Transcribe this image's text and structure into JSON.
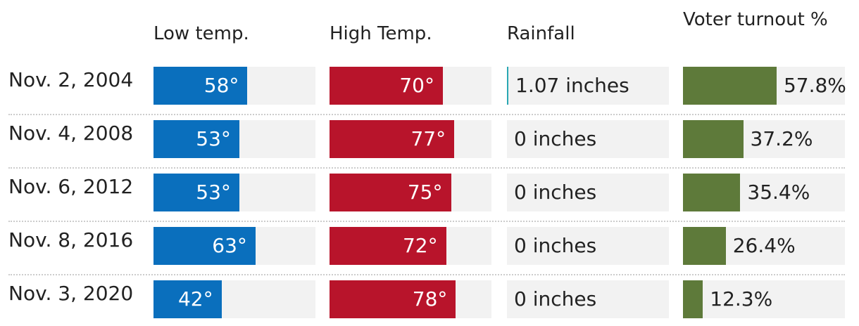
{
  "chart_data": {
    "type": "table",
    "columns": [
      "Low temp.",
      "High Temp.",
      "Rainfall",
      "Voter turnout %"
    ],
    "rows": [
      {
        "date": "Nov. 2, 2004",
        "low": 58,
        "low_label": "58°",
        "high": 70,
        "high_label": "70°",
        "rain": 1.07,
        "rain_label": "1.07 inches",
        "turnout": 57.8,
        "turnout_label": "57.8%"
      },
      {
        "date": "Nov. 4, 2008",
        "low": 53,
        "low_label": "53°",
        "high": 77,
        "high_label": "77°",
        "rain": 0,
        "rain_label": "0 inches",
        "turnout": 37.2,
        "turnout_label": "37.2%"
      },
      {
        "date": "Nov. 6, 2012",
        "low": 53,
        "low_label": "53°",
        "high": 75,
        "high_label": "75°",
        "rain": 0,
        "rain_label": "0 inches",
        "turnout": 35.4,
        "turnout_label": "35.4%"
      },
      {
        "date": "Nov. 8, 2016",
        "low": 63,
        "low_label": "63°",
        "high": 72,
        "high_label": "72°",
        "rain": 0,
        "rain_label": "0 inches",
        "turnout": 26.4,
        "turnout_label": "26.4%"
      },
      {
        "date": "Nov. 3, 2020",
        "low": 42,
        "low_label": "42°",
        "high": 78,
        "high_label": "78°",
        "rain": 0,
        "rain_label": "0 inches",
        "turnout": 12.3,
        "turnout_label": "12.3%"
      }
    ],
    "colors": {
      "low": "#0a6fbd",
      "high": "#b8142b",
      "rain": "#2aa7b3",
      "turnout": "#5e7a3a",
      "track": "#f2f2f2"
    }
  }
}
